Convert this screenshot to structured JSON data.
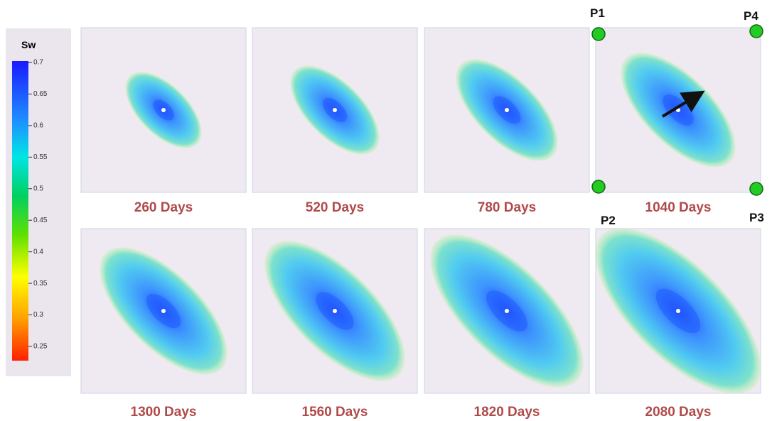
{
  "colorbar": {
    "title": "Sw",
    "ticks": [
      "0.7",
      "0.65",
      "0.6",
      "0.55",
      "0.5",
      "0.45",
      "0.4",
      "0.35",
      "0.3",
      "0.25"
    ]
  },
  "panels": [
    {
      "label": "260 Days"
    },
    {
      "label": "520 Days"
    },
    {
      "label": "780 Days"
    },
    {
      "label": "1040 Days"
    },
    {
      "label": "1300 Days"
    },
    {
      "label": "1560 Days"
    },
    {
      "label": "1820 Days"
    },
    {
      "label": "2080 Days"
    }
  ],
  "wells": [
    {
      "label": "P1"
    },
    {
      "label": "P2"
    },
    {
      "label": "P3"
    },
    {
      "label": "P4"
    }
  ]
}
